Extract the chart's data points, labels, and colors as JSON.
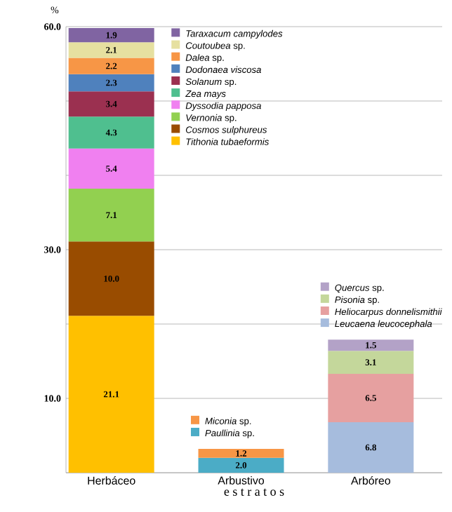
{
  "chart_data": {
    "type": "bar",
    "stacked": true,
    "ylabel": "%",
    "xlabel": "e s t r a t o s",
    "categories": [
      "Herbáceo",
      "Arbustivo",
      "Arbóreo"
    ],
    "ylim": [
      0,
      60
    ],
    "yticks": [
      {
        "value": 0,
        "label": null
      },
      {
        "value": 10,
        "label": "10.0"
      },
      {
        "value": 20,
        "label": null
      },
      {
        "value": 30,
        "label": "30.0"
      },
      {
        "value": 40,
        "label": null
      },
      {
        "value": 50,
        "label": null
      },
      {
        "value": 60,
        "label": "60.0"
      }
    ],
    "grid": "y",
    "legend": "top right",
    "series": [
      {
        "name": "*Tithonia tubaeformis*",
        "color": "#ffc000",
        "values": [
          21.1,
          null,
          null
        ],
        "value_labels": [
          "21.1",
          null,
          null
        ]
      },
      {
        "name": "*Cosmos sulphureus*",
        "color": "#994c00",
        "values": [
          10.0,
          null,
          null
        ],
        "value_labels": [
          "10.0",
          null,
          null
        ]
      },
      {
        "name": "*Vernonia* sp.",
        "color": "#92d050",
        "values": [
          7.1,
          null,
          null
        ],
        "value_labels": [
          "7.1",
          null,
          null
        ]
      },
      {
        "name": "*Dyssodia papposa*",
        "color": "#f080f0",
        "values": [
          5.4,
          null,
          null
        ],
        "value_labels": [
          "5.4",
          null,
          null
        ]
      },
      {
        "name": "*Zea mays*",
        "color": "#4fbf8f",
        "values": [
          4.3,
          null,
          null
        ],
        "value_labels": [
          "4.3",
          null,
          null
        ]
      },
      {
        "name": "*Solanum* sp.",
        "color": "#9b3050",
        "values": [
          3.4,
          null,
          null
        ],
        "value_labels": [
          "3.4",
          null,
          null
        ]
      },
      {
        "name": "*Dodonaea viscosa*",
        "color": "#4f81bd",
        "values": [
          2.3,
          null,
          null
        ],
        "value_labels": [
          "2.3",
          null,
          null
        ]
      },
      {
        "name": "*Dalea* sp.",
        "color": "#f79646",
        "values": [
          2.2,
          null,
          null
        ],
        "value_labels": [
          "2.2",
          null,
          null
        ]
      },
      {
        "name": "*Coutoubea* sp.",
        "color": "#e6e0a0",
        "values": [
          2.1,
          null,
          null
        ],
        "value_labels": [
          "2.1",
          null,
          null
        ]
      },
      {
        "name": "*Taraxacum campylodes*",
        "color": "#8064a2",
        "values": [
          1.9,
          null,
          null
        ],
        "value_labels": [
          "1.9",
          null,
          null
        ]
      },
      {
        "name": "*Paullinia* sp.",
        "color": "#4bacc6",
        "values": [
          null,
          2.0,
          null
        ],
        "value_labels": [
          null,
          "2.0",
          null
        ]
      },
      {
        "name": "*Miconia* sp.",
        "color": "#f79646",
        "values": [
          null,
          1.2,
          null
        ],
        "value_labels": [
          null,
          "1.2",
          null
        ]
      },
      {
        "name": "*Leucaena leucocephala*",
        "color": "#a6bcdd",
        "values": [
          null,
          null,
          6.8
        ],
        "value_labels": [
          null,
          null,
          "6.8"
        ]
      },
      {
        "name": "*Heliocarpus donnelismithii*",
        "color": "#e6a0a0",
        "values": [
          null,
          null,
          6.5
        ],
        "value_labels": [
          null,
          null,
          "6.5"
        ]
      },
      {
        "name": "*Pisonia* sp.",
        "color": "#c4d79b",
        "values": [
          null,
          null,
          3.1
        ],
        "value_labels": [
          null,
          null,
          "3.1"
        ]
      },
      {
        "name": "*Quercus* sp.",
        "color": "#b3a2c7",
        "values": [
          null,
          null,
          1.5
        ],
        "value_labels": [
          null,
          null,
          "1.5"
        ]
      }
    ]
  }
}
